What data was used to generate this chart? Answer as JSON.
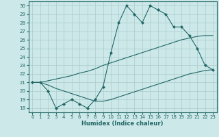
{
  "xlabel": "Humidex (Indice chaleur)",
  "background_color": "#cce8e8",
  "grid_color": "#aacccc",
  "line_color": "#226666",
  "xlim": [
    -0.5,
    23.5
  ],
  "ylim": [
    17.5,
    30.5
  ],
  "xticks": [
    0,
    1,
    2,
    3,
    4,
    5,
    6,
    7,
    8,
    9,
    10,
    11,
    12,
    13,
    14,
    15,
    16,
    17,
    18,
    19,
    20,
    21,
    22,
    23
  ],
  "yticks": [
    18,
    19,
    20,
    21,
    22,
    23,
    24,
    25,
    26,
    27,
    28,
    29,
    30
  ],
  "line1": {
    "x": [
      0,
      1,
      2,
      3,
      4,
      5,
      6,
      7,
      8,
      9,
      10,
      11,
      12,
      13,
      14,
      15,
      16,
      17,
      18,
      19,
      20,
      21,
      22,
      23
    ],
    "y": [
      21.0,
      21.0,
      20.0,
      18.0,
      18.5,
      19.0,
      18.5,
      18.0,
      19.0,
      20.5,
      24.5,
      28.0,
      30.0,
      29.0,
      28.0,
      30.0,
      29.5,
      29.0,
      27.5,
      27.5,
      26.5,
      25.0,
      23.0,
      22.5
    ]
  },
  "line2": {
    "x": [
      0,
      1,
      2,
      3,
      4,
      5,
      6,
      7,
      8,
      9,
      10,
      11,
      12,
      13,
      14,
      15,
      16,
      17,
      18,
      19,
      20,
      21,
      22,
      23
    ],
    "y": [
      21.0,
      21.0,
      21.2,
      21.4,
      21.6,
      21.8,
      22.1,
      22.3,
      22.6,
      23.0,
      23.3,
      23.6,
      23.9,
      24.2,
      24.5,
      24.8,
      25.1,
      25.4,
      25.7,
      26.0,
      26.2,
      26.4,
      26.5,
      26.5
    ]
  },
  "line3": {
    "x": [
      0,
      1,
      2,
      3,
      4,
      5,
      6,
      7,
      8,
      9,
      10,
      11,
      12,
      13,
      14,
      15,
      16,
      17,
      18,
      19,
      20,
      21,
      22,
      23
    ],
    "y": [
      21.0,
      21.0,
      20.7,
      20.3,
      20.0,
      19.7,
      19.4,
      19.1,
      18.8,
      18.8,
      19.0,
      19.3,
      19.6,
      19.9,
      20.2,
      20.5,
      20.8,
      21.1,
      21.4,
      21.7,
      22.0,
      22.2,
      22.4,
      22.5
    ]
  }
}
